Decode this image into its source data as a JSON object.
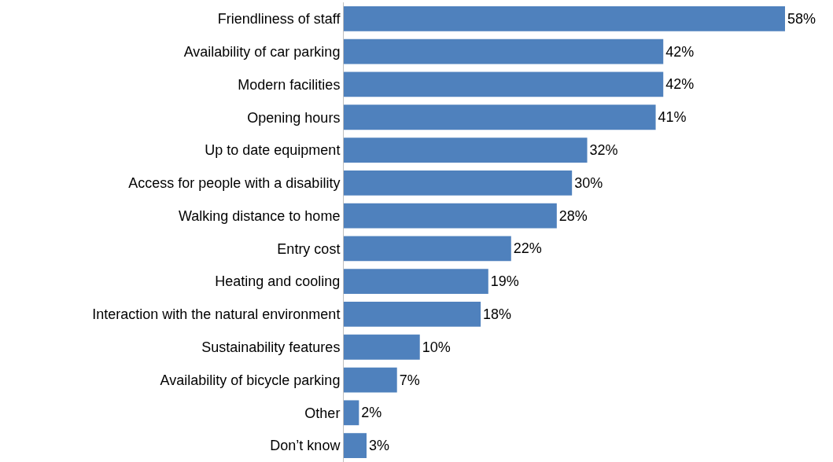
{
  "chart_data": {
    "type": "bar",
    "orientation": "horizontal",
    "categories": [
      "Friendliness of staff",
      "Availability of car parking",
      "Modern facilities",
      "Opening hours",
      "Up to date equipment",
      "Access for people with a disability",
      "Walking distance to home",
      "Entry cost",
      "Heating and cooling",
      "Interaction with the natural environment",
      "Sustainability features",
      "Availability of bicycle parking",
      "Other",
      "Don’t know"
    ],
    "values": [
      58,
      42,
      42,
      41,
      32,
      30,
      28,
      22,
      19,
      18,
      10,
      7,
      2,
      3
    ],
    "value_labels": [
      "58%",
      "42%",
      "42%",
      "41%",
      "32%",
      "30%",
      "28%",
      "22%",
      "19%",
      "18%",
      "10%",
      "7%",
      "2%",
      "3%"
    ],
    "color": "#4f81bd"
  }
}
